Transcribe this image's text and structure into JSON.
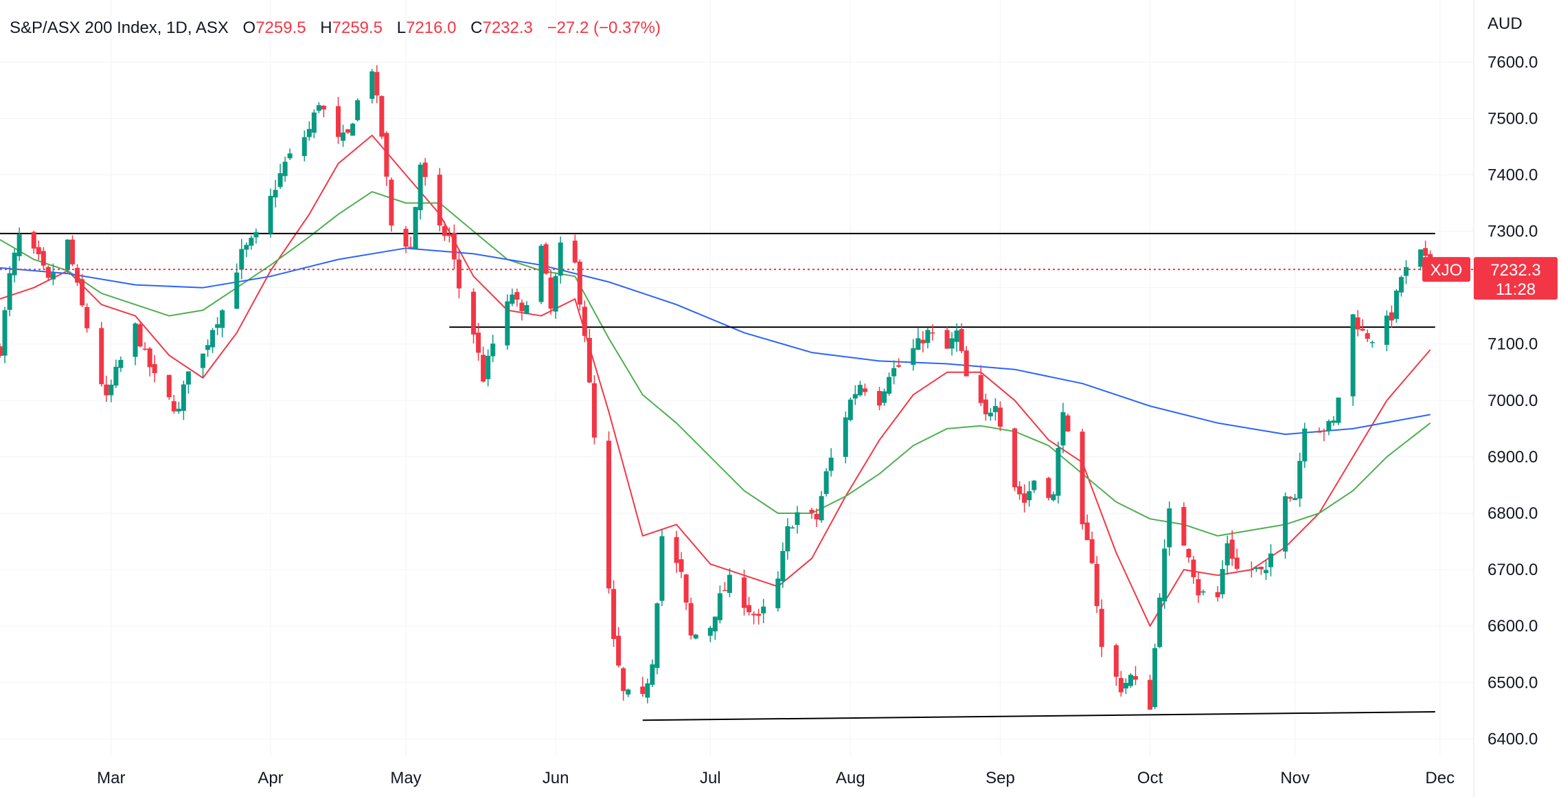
{
  "header": {
    "symbol_text": "S&P/ASX 200 Index, 1D, ASX",
    "o_label": "O",
    "o_value": "7259.5",
    "h_label": "H",
    "h_value": "7259.5",
    "l_label": "L",
    "l_value": "7216.0",
    "c_label": "C",
    "c_value": "7232.3",
    "change_text": "−27.2 (−0.37%)"
  },
  "currency_label": "AUD",
  "price_tag": {
    "symbol": "XJO",
    "price": "7232.3",
    "countdown": "11:28"
  },
  "colors": {
    "up": "#089981",
    "down": "#F23645",
    "ema_fast": "#F23645",
    "ema_mid": "#4CAF50",
    "ema_slow": "#2962FF",
    "level_line": "#000000",
    "grid": "#F0F3FA",
    "tag_bg": "#F23645"
  },
  "chart_data": {
    "type": "candlestick",
    "title": "S&P/ASX 200 Index, 1D, ASX",
    "ylim": [
      6370,
      7710
    ],
    "y_ticks": [
      "6400.0",
      "6500.0",
      "6600.0",
      "6700.0",
      "6800.0",
      "6900.0",
      "7000.0",
      "7100.0",
      "7200.0",
      "7300.0",
      "7400.0",
      "7500.0",
      "7600.0"
    ],
    "x_range": [
      "2023-02-06",
      "2023-12-08"
    ],
    "x_ticks": [
      {
        "label": "Mar",
        "date": "2023-03-01"
      },
      {
        "label": "Apr",
        "date": "2023-04-03"
      },
      {
        "label": "May",
        "date": "2023-05-01"
      },
      {
        "label": "Jun",
        "date": "2023-06-01"
      },
      {
        "label": "Jul",
        "date": "2023-07-03"
      },
      {
        "label": "Aug",
        "date": "2023-08-01"
      },
      {
        "label": "Sep",
        "date": "2023-09-01"
      },
      {
        "label": "Oct",
        "date": "2023-10-02"
      },
      {
        "label": "Nov",
        "date": "2023-11-01"
      },
      {
        "label": "Dec",
        "date": "2023-12-01"
      }
    ],
    "last_price": 7232.3,
    "levels": [
      {
        "name": "resistance",
        "from": {
          "date": "2023-02-06",
          "y": 7296
        },
        "to": {
          "date": "2023-11-30",
          "y": 7296
        }
      },
      {
        "name": "support-mid",
        "from": {
          "date": "2023-05-10",
          "y": 7130
        },
        "to": {
          "date": "2023-11-30",
          "y": 7130
        }
      },
      {
        "name": "support-low",
        "from": {
          "date": "2023-06-19",
          "y": 6433
        },
        "to": {
          "date": "2023-11-30",
          "y": 6448
        }
      }
    ],
    "close_path": [
      [
        "2023-02-06",
        7090
      ],
      [
        "2023-02-08",
        7220
      ],
      [
        "2023-02-10",
        7290
      ],
      [
        "2023-02-14",
        7250
      ],
      [
        "2023-02-16",
        7210
      ],
      [
        "2023-02-20",
        7280
      ],
      [
        "2023-02-22",
        7200
      ],
      [
        "2023-02-24",
        7130
      ],
      [
        "2023-02-28",
        7000
      ],
      [
        "2023-03-02",
        7050
      ],
      [
        "2023-03-06",
        7130
      ],
      [
        "2023-03-08",
        7080
      ],
      [
        "2023-03-10",
        7040
      ],
      [
        "2023-03-13",
        7000
      ],
      [
        "2023-03-15",
        6980
      ],
      [
        "2023-03-17",
        7060
      ],
      [
        "2023-03-20",
        7080
      ],
      [
        "2023-03-22",
        7130
      ],
      [
        "2023-03-24",
        7160
      ],
      [
        "2023-03-28",
        7260
      ],
      [
        "2023-03-31",
        7290
      ],
      [
        "2023-04-04",
        7380
      ],
      [
        "2023-04-06",
        7420
      ],
      [
        "2023-04-11",
        7480
      ],
      [
        "2023-04-13",
        7530
      ],
      [
        "2023-04-17",
        7460
      ],
      [
        "2023-04-19",
        7470
      ],
      [
        "2023-04-21",
        7530
      ],
      [
        "2023-04-24",
        7590
      ],
      [
        "2023-04-26",
        7470
      ],
      [
        "2023-04-28",
        7310
      ],
      [
        "2023-05-02",
        7270
      ],
      [
        "2023-05-04",
        7420
      ],
      [
        "2023-05-08",
        7300
      ],
      [
        "2023-05-10",
        7290
      ],
      [
        "2023-05-12",
        7200
      ],
      [
        "2023-05-15",
        7120
      ],
      [
        "2023-05-17",
        7040
      ],
      [
        "2023-05-19",
        7100
      ],
      [
        "2023-05-23",
        7190
      ],
      [
        "2023-05-25",
        7150
      ],
      [
        "2023-05-29",
        7270
      ],
      [
        "2023-05-31",
        7160
      ],
      [
        "2023-06-02",
        7270
      ],
      [
        "2023-06-05",
        7240
      ],
      [
        "2023-06-07",
        7120
      ],
      [
        "2023-06-09",
        6930
      ],
      [
        "2023-06-13",
        6570
      ],
      [
        "2023-06-15",
        6480
      ],
      [
        "2023-06-19",
        6470
      ],
      [
        "2023-06-21",
        6540
      ],
      [
        "2023-06-23",
        6760
      ],
      [
        "2023-06-27",
        6690
      ],
      [
        "2023-06-29",
        6580
      ],
      [
        "2023-07-03",
        6600
      ],
      [
        "2023-07-05",
        6650
      ],
      [
        "2023-07-07",
        6680
      ],
      [
        "2023-07-11",
        6630
      ],
      [
        "2023-07-13",
        6610
      ],
      [
        "2023-07-17",
        6680
      ],
      [
        "2023-07-19",
        6770
      ],
      [
        "2023-07-21",
        6800
      ],
      [
        "2023-07-25",
        6790
      ],
      [
        "2023-07-27",
        6870
      ],
      [
        "2023-08-01",
        7000
      ],
      [
        "2023-08-03",
        7030
      ],
      [
        "2023-08-07",
        7000
      ],
      [
        "2023-08-09",
        7050
      ],
      [
        "2023-08-11",
        7060
      ],
      [
        "2023-08-15",
        7100
      ],
      [
        "2023-08-17",
        7120
      ],
      [
        "2023-08-21",
        7090
      ],
      [
        "2023-08-23",
        7120
      ],
      [
        "2023-08-25",
        7040
      ],
      [
        "2023-08-29",
        6970
      ],
      [
        "2023-08-31",
        7000
      ],
      [
        "2023-09-04",
        6850
      ],
      [
        "2023-09-06",
        6820
      ],
      [
        "2023-09-08",
        6860
      ],
      [
        "2023-09-12",
        6830
      ],
      [
        "2023-09-14",
        6990
      ],
      [
        "2023-09-18",
        6770
      ],
      [
        "2023-09-20",
        6720
      ],
      [
        "2023-09-22",
        6560
      ],
      [
        "2023-09-26",
        6490
      ],
      [
        "2023-09-28",
        6510
      ],
      [
        "2023-10-02",
        6460
      ],
      [
        "2023-10-04",
        6660
      ],
      [
        "2023-10-06",
        6800
      ],
      [
        "2023-10-10",
        6730
      ],
      [
        "2023-10-12",
        6660
      ],
      [
        "2023-10-16",
        6650
      ],
      [
        "2023-10-18",
        6750
      ],
      [
        "2023-10-20",
        6700
      ],
      [
        "2023-10-24",
        6700
      ],
      [
        "2023-10-26",
        6690
      ],
      [
        "2023-10-30",
        6840
      ],
      [
        "2023-11-01",
        6830
      ],
      [
        "2023-11-03",
        6960
      ],
      [
        "2023-11-07",
        6950
      ],
      [
        "2023-11-09",
        6960
      ],
      [
        "2023-11-13",
        7150
      ],
      [
        "2023-11-15",
        7120
      ],
      [
        "2023-11-17",
        7110
      ],
      [
        "2023-11-21",
        7150
      ],
      [
        "2023-11-23",
        7220
      ],
      [
        "2023-11-27",
        7260
      ],
      [
        "2023-11-29",
        7232.3
      ]
    ],
    "series": [
      {
        "key": "ema_fast",
        "points": [
          [
            "2023-02-06",
            7180
          ],
          [
            "2023-02-13",
            7200
          ],
          [
            "2023-02-20",
            7230
          ],
          [
            "2023-02-27",
            7170
          ],
          [
            "2023-03-06",
            7150
          ],
          [
            "2023-03-13",
            7080
          ],
          [
            "2023-03-20",
            7040
          ],
          [
            "2023-03-27",
            7120
          ],
          [
            "2023-04-03",
            7230
          ],
          [
            "2023-04-11",
            7330
          ],
          [
            "2023-04-17",
            7420
          ],
          [
            "2023-04-24",
            7470
          ],
          [
            "2023-05-01",
            7400
          ],
          [
            "2023-05-08",
            7330
          ],
          [
            "2023-05-15",
            7220
          ],
          [
            "2023-05-22",
            7160
          ],
          [
            "2023-05-29",
            7150
          ],
          [
            "2023-06-05",
            7180
          ],
          [
            "2023-06-12",
            6980
          ],
          [
            "2023-06-19",
            6760
          ],
          [
            "2023-06-26",
            6780
          ],
          [
            "2023-07-03",
            6710
          ],
          [
            "2023-07-10",
            6690
          ],
          [
            "2023-07-17",
            6670
          ],
          [
            "2023-07-24",
            6720
          ],
          [
            "2023-07-31",
            6830
          ],
          [
            "2023-08-07",
            6930
          ],
          [
            "2023-08-14",
            7010
          ],
          [
            "2023-08-21",
            7050
          ],
          [
            "2023-08-28",
            7050
          ],
          [
            "2023-09-04",
            7000
          ],
          [
            "2023-09-11",
            6930
          ],
          [
            "2023-09-18",
            6890
          ],
          [
            "2023-09-25",
            6730
          ],
          [
            "2023-10-02",
            6600
          ],
          [
            "2023-10-09",
            6700
          ],
          [
            "2023-10-16",
            6690
          ],
          [
            "2023-10-23",
            6700
          ],
          [
            "2023-10-30",
            6740
          ],
          [
            "2023-11-06",
            6800
          ],
          [
            "2023-11-13",
            6900
          ],
          [
            "2023-11-20",
            7000
          ],
          [
            "2023-11-29",
            7090
          ]
        ]
      },
      {
        "key": "ema_mid",
        "points": [
          [
            "2023-02-06",
            7285
          ],
          [
            "2023-02-13",
            7250
          ],
          [
            "2023-02-20",
            7230
          ],
          [
            "2023-02-27",
            7190
          ],
          [
            "2023-03-06",
            7170
          ],
          [
            "2023-03-13",
            7150
          ],
          [
            "2023-03-20",
            7160
          ],
          [
            "2023-03-27",
            7200
          ],
          [
            "2023-04-03",
            7240
          ],
          [
            "2023-04-11",
            7290
          ],
          [
            "2023-04-17",
            7330
          ],
          [
            "2023-04-24",
            7370
          ],
          [
            "2023-05-01",
            7350
          ],
          [
            "2023-05-08",
            7350
          ],
          [
            "2023-05-15",
            7300
          ],
          [
            "2023-05-22",
            7250
          ],
          [
            "2023-05-29",
            7230
          ],
          [
            "2023-06-05",
            7220
          ],
          [
            "2023-06-12",
            7110
          ],
          [
            "2023-06-19",
            7010
          ],
          [
            "2023-06-26",
            6960
          ],
          [
            "2023-07-03",
            6900
          ],
          [
            "2023-07-10",
            6840
          ],
          [
            "2023-07-17",
            6800
          ],
          [
            "2023-07-24",
            6800
          ],
          [
            "2023-07-31",
            6830
          ],
          [
            "2023-08-07",
            6870
          ],
          [
            "2023-08-14",
            6920
          ],
          [
            "2023-08-21",
            6950
          ],
          [
            "2023-08-28",
            6955
          ],
          [
            "2023-09-04",
            6945
          ],
          [
            "2023-09-11",
            6920
          ],
          [
            "2023-09-18",
            6870
          ],
          [
            "2023-09-25",
            6820
          ],
          [
            "2023-10-02",
            6790
          ],
          [
            "2023-10-09",
            6780
          ],
          [
            "2023-10-16",
            6760
          ],
          [
            "2023-10-23",
            6770
          ],
          [
            "2023-10-30",
            6780
          ],
          [
            "2023-11-06",
            6800
          ],
          [
            "2023-11-13",
            6840
          ],
          [
            "2023-11-20",
            6900
          ],
          [
            "2023-11-29",
            6960
          ]
        ]
      },
      {
        "key": "ema_slow",
        "points": [
          [
            "2023-02-06",
            7235
          ],
          [
            "2023-02-20",
            7225
          ],
          [
            "2023-03-06",
            7205
          ],
          [
            "2023-03-20",
            7200
          ],
          [
            "2023-04-03",
            7220
          ],
          [
            "2023-04-17",
            7250
          ],
          [
            "2023-05-01",
            7270
          ],
          [
            "2023-05-15",
            7260
          ],
          [
            "2023-05-29",
            7240
          ],
          [
            "2023-06-12",
            7210
          ],
          [
            "2023-06-26",
            7170
          ],
          [
            "2023-07-10",
            7120
          ],
          [
            "2023-07-24",
            7085
          ],
          [
            "2023-08-07",
            7070
          ],
          [
            "2023-08-21",
            7065
          ],
          [
            "2023-09-04",
            7055
          ],
          [
            "2023-09-18",
            7030
          ],
          [
            "2023-10-02",
            6990
          ],
          [
            "2023-10-16",
            6960
          ],
          [
            "2023-10-30",
            6940
          ],
          [
            "2023-11-13",
            6950
          ],
          [
            "2023-11-29",
            6975
          ]
        ]
      }
    ]
  }
}
